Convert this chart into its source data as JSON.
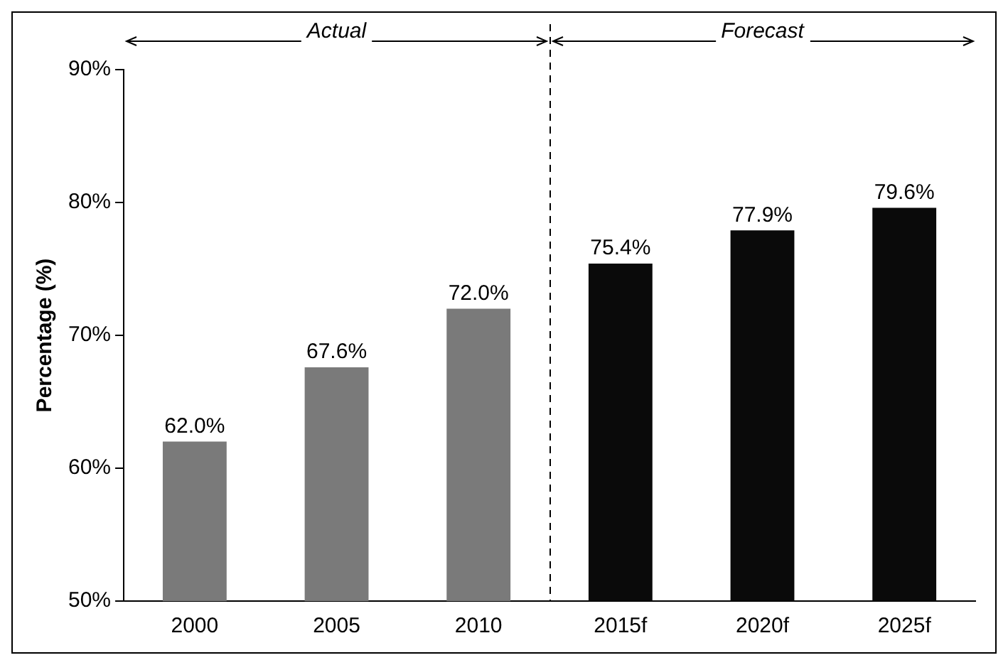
{
  "chart_data": {
    "type": "bar",
    "ylabel": "Percentage (%)",
    "categories": [
      "2000",
      "2005",
      "2010",
      "2015f",
      "2020f",
      "2025f"
    ],
    "values": [
      62.0,
      67.6,
      72.0,
      75.4,
      77.9,
      79.6
    ],
    "colors": [
      "#7a7a7a",
      "#7a7a7a",
      "#7a7a7a",
      "#0a0a0a",
      "#0a0a0a",
      "#0a0a0a"
    ],
    "value_labels": [
      "62.0%",
      "67.6%",
      "72.0%",
      "75.4%",
      "77.9%",
      "79.6%"
    ],
    "ylim": [
      50,
      90
    ],
    "yticks": [
      {
        "value": 50,
        "label": "50%"
      },
      {
        "value": 60,
        "label": "60%"
      },
      {
        "value": 70,
        "label": "70%"
      },
      {
        "value": 80,
        "label": "80%"
      },
      {
        "value": 90,
        "label": "90%"
      }
    ],
    "annotations": [
      "Actual",
      "Forecast"
    ],
    "grid": false,
    "legend": false
  }
}
